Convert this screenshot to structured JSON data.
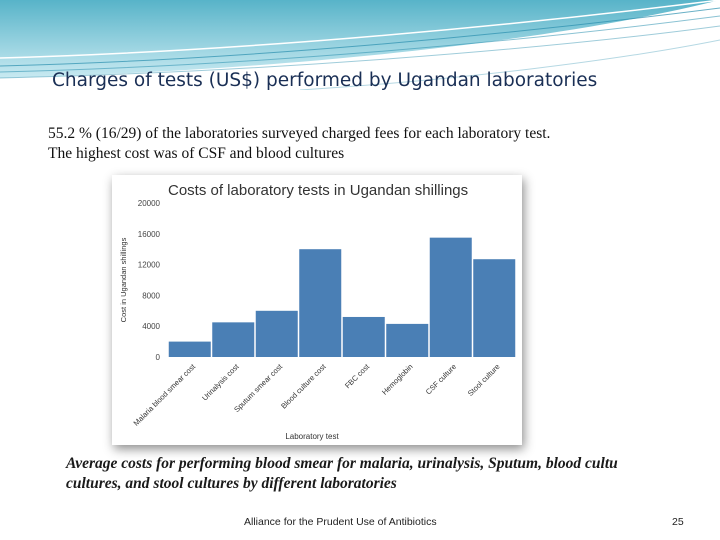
{
  "slide": {
    "title": "Charges of tests (US$) performed by Ugandan laboratories",
    "body_line1": "55.2 % (16/29) of the laboratories surveyed charged fees for each laboratory test.",
    "body_line2": "The highest cost was of CSF and blood cultures",
    "caption_line1": "Average costs for performing blood smear for malaria, urinalysis, Sputum, blood cultu",
    "caption_line2": "cultures, and stool cultures by different laboratories",
    "footer": "Alliance for the Prudent Use of Antibiotics",
    "page_number": "25"
  },
  "colors": {
    "bar": "#4a7fb5",
    "banner": "#4fb3c8"
  },
  "chart_data": {
    "type": "bar",
    "title": "Costs of laboratory tests in Ugandan shillings",
    "xlabel": "Laboratory test",
    "ylabel": "Cost in Ugandan shillings",
    "categories": [
      "Malaria blood smear cost",
      "Urinalysis cost",
      "Sputum smear cost",
      "Blood culture cost",
      "FBC cost",
      "Hemoglobin",
      "CSF culture",
      "Stool culture"
    ],
    "values": [
      2000,
      4500,
      6000,
      14000,
      5200,
      4300,
      15500,
      12700
    ],
    "ylim": [
      0,
      20000
    ],
    "yticks": [
      "0",
      "4000",
      "8000",
      "12000",
      "16000",
      "20000"
    ],
    "grid": false
  }
}
